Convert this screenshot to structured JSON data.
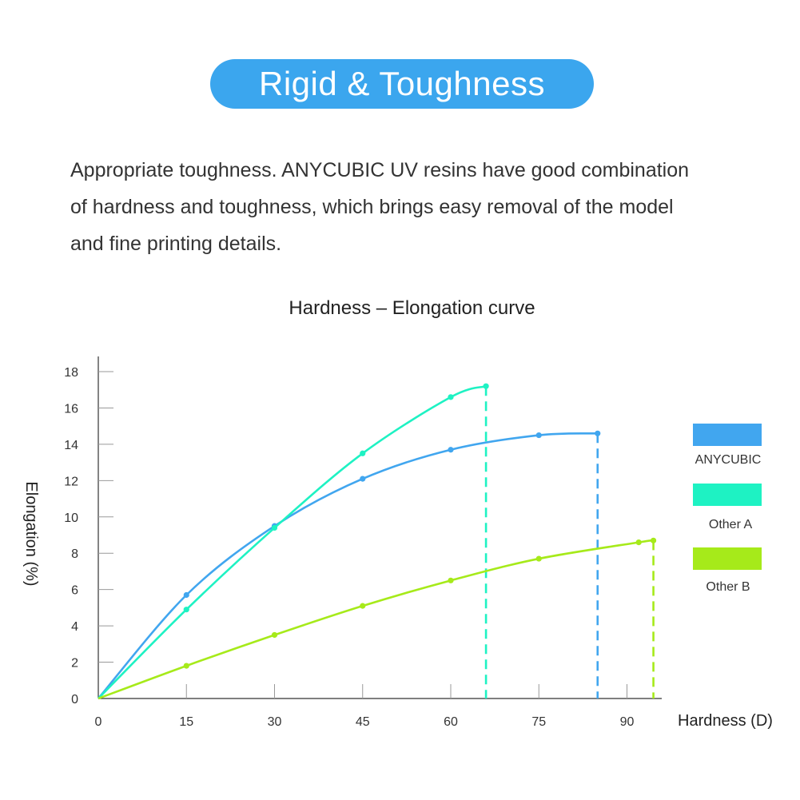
{
  "header": {
    "title": "Rigid & Toughness"
  },
  "description": [
    "Appropriate toughness. ANYCUBIC UV resins have good combination",
    "of hardness and toughness, which brings easy removal of the model",
    "and fine printing details."
  ],
  "chart_data": {
    "type": "line",
    "title": "Hardness – Elongation curve",
    "xlabel": "Hardness (D)",
    "ylabel": "Elongation (%)",
    "xlim": [
      0,
      95
    ],
    "ylim": [
      0,
      18
    ],
    "xticks": [
      0,
      15,
      30,
      45,
      60,
      75,
      90
    ],
    "yticks": [
      0,
      2,
      4,
      6,
      8,
      10,
      12,
      14,
      16,
      18
    ],
    "grid": false,
    "legend_position": "right",
    "series": [
      {
        "name": "ANYCUBIC",
        "color": "#41a6ef",
        "x": [
          0,
          15,
          30,
          45,
          60,
          75,
          85
        ],
        "y": [
          0,
          5.7,
          9.5,
          12.1,
          13.7,
          14.5,
          14.6
        ],
        "end_x": 85
      },
      {
        "name": "Other A",
        "color": "#1ef2c3",
        "x": [
          0,
          15,
          30,
          45,
          60,
          66
        ],
        "y": [
          0,
          4.9,
          9.4,
          13.5,
          16.6,
          17.2
        ],
        "end_x": 66
      },
      {
        "name": "Other B",
        "color": "#a6ea1a",
        "x": [
          0,
          15,
          30,
          45,
          60,
          75,
          92,
          94.5
        ],
        "y": [
          0,
          1.8,
          3.5,
          5.1,
          6.5,
          7.7,
          8.6,
          8.7
        ],
        "end_x": 94.5
      }
    ]
  }
}
